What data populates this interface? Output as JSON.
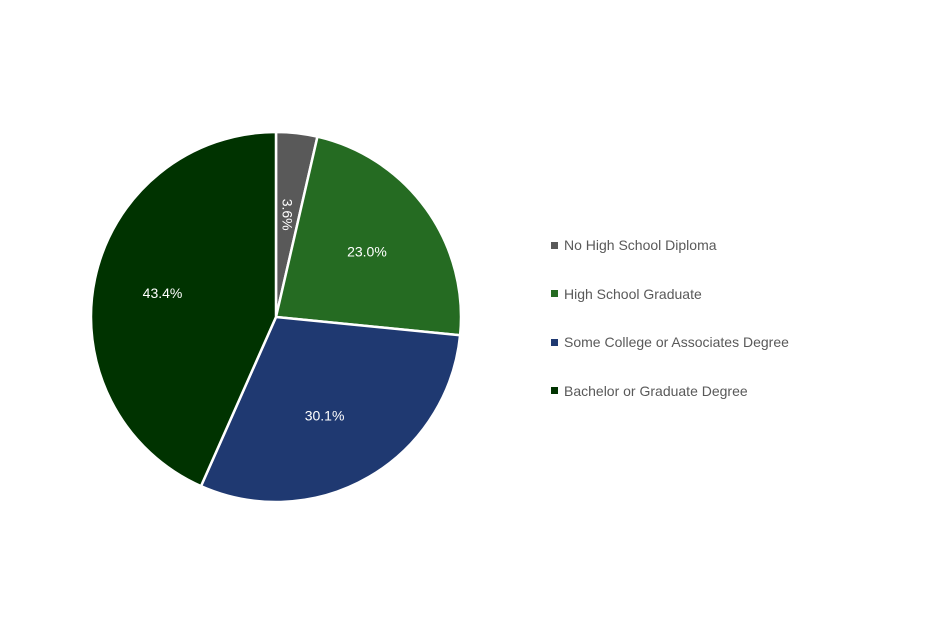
{
  "chart_data": {
    "type": "pie",
    "title": "",
    "categories": [
      "No High School Diploma",
      "High School Graduate",
      "Some College or Associates Degree",
      "Bachelor or Graduate Degree"
    ],
    "values": [
      3.6,
      23.0,
      30.1,
      43.4
    ],
    "data_labels": [
      "3.6%",
      "23.0%",
      "30.1%",
      "43.4%"
    ],
    "colors": [
      "#595959",
      "#256b22",
      "#1f3971",
      "#003300"
    ],
    "legend": "right",
    "start_angle": "12 o'clock",
    "direction": "clockwise"
  }
}
